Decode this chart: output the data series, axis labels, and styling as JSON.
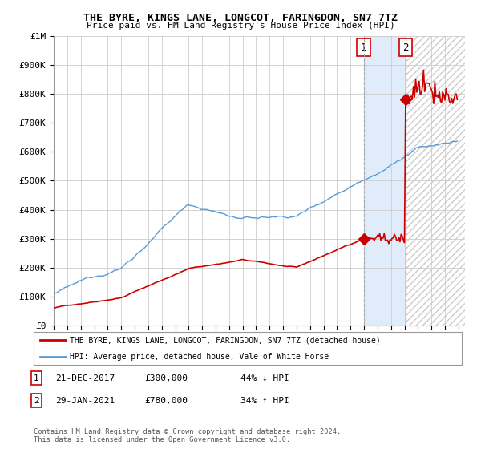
{
  "title": "THE BYRE, KINGS LANE, LONGCOT, FARINGDON, SN7 7TZ",
  "subtitle": "Price paid vs. HM Land Registry's House Price Index (HPI)",
  "ylabel_ticks": [
    "£0",
    "£100K",
    "£200K",
    "£300K",
    "£400K",
    "£500K",
    "£600K",
    "£700K",
    "£800K",
    "£900K",
    "£1M"
  ],
  "ytick_vals": [
    0,
    100000,
    200000,
    300000,
    400000,
    500000,
    600000,
    700000,
    800000,
    900000,
    1000000
  ],
  "ylim": [
    0,
    1000000
  ],
  "xlim_start": 1995.0,
  "xlim_end": 2025.5,
  "hpi_color": "#5b9bd5",
  "price_color": "#cc0000",
  "legend_label_red": "THE BYRE, KINGS LANE, LONGCOT, FARINGDON, SN7 7TZ (detached house)",
  "legend_label_blue": "HPI: Average price, detached house, Vale of White Horse",
  "sale1_x": 2017.97,
  "sale1_y": 300000,
  "sale1_label": "1",
  "sale2_x": 2021.08,
  "sale2_y": 780000,
  "sale2_label": "2",
  "footer": "Contains HM Land Registry data © Crown copyright and database right 2024.\nThis data is licensed under the Open Government Licence v3.0.",
  "background_color": "#ffffff",
  "grid_color": "#cccccc",
  "shade_color": "#ddeeff",
  "hatch_color": "#cccccc",
  "xtick_years": [
    1995,
    1996,
    1997,
    1998,
    1999,
    2000,
    2001,
    2002,
    2003,
    2004,
    2005,
    2006,
    2007,
    2008,
    2009,
    2010,
    2011,
    2012,
    2013,
    2014,
    2015,
    2016,
    2017,
    2018,
    2019,
    2020,
    2021,
    2022,
    2023,
    2024,
    2025
  ]
}
